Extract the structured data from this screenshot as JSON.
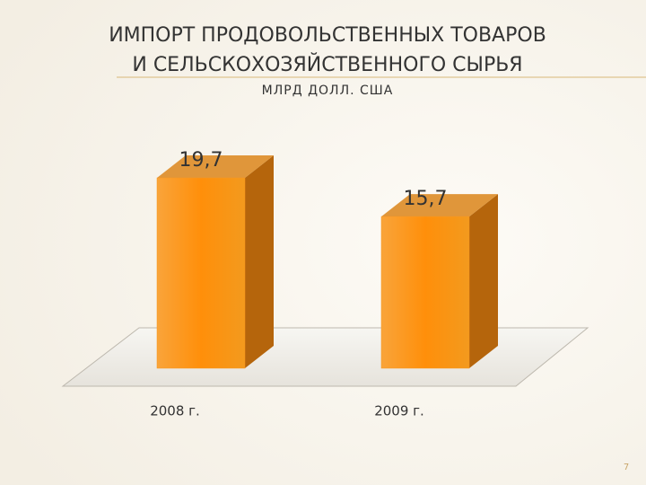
{
  "chart_data": {
    "type": "bar3d",
    "title": [
      "ИМПОРТ ПРОДОВОЛЬСТВЕННЫХ ТОВАРОВ",
      "И СЕЛЬСКОХОЗЯЙСТВЕННОГО СЫРЬЯ"
    ],
    "subtitle": "МЛРД  ДОЛЛ. США",
    "categories": [
      "2008 г.",
      "2009 г."
    ],
    "values": [
      19.7,
      15.7
    ],
    "value_labels": [
      "19,7",
      "15,7"
    ],
    "color": "#f7941d"
  },
  "page_number": "7"
}
